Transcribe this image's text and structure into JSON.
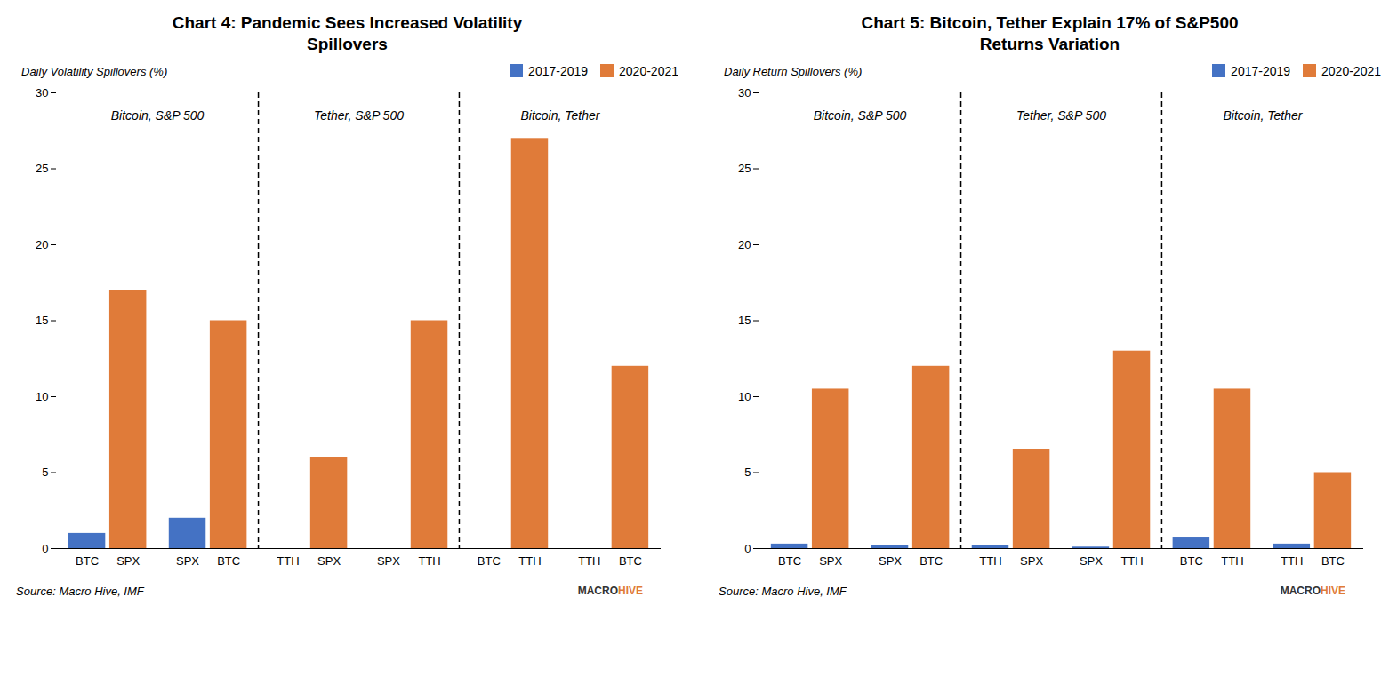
{
  "chart_data": [
    {
      "type": "bar",
      "title": "Chart 4: Pandemic Sees Increased Volatility\nSpillovers",
      "ylabel": "Daily Volatility Spillovers (%)",
      "categories": [
        "BTC",
        "SPX",
        "SPX",
        "BTC",
        "TTH",
        "SPX",
        "SPX",
        "TTH",
        "BTC",
        "TTH",
        "TTH",
        "BTC"
      ],
      "series": [
        {
          "name": "2017-2019",
          "color": "#4472C4",
          "values": [
            1.0,
            null,
            2.0,
            null,
            0.0,
            null,
            0.0,
            null,
            0.0,
            null,
            0.0,
            null
          ]
        },
        {
          "name": "2020-2021",
          "color": "#E07B39",
          "values": [
            null,
            17.0,
            null,
            15.0,
            null,
            6.0,
            null,
            15.0,
            null,
            27.0,
            null,
            12.0
          ]
        }
      ],
      "sections": [
        {
          "label": "Bitcoin, S&P 500",
          "count": 4
        },
        {
          "label": "Tether, S&P 500",
          "count": 4
        },
        {
          "label": "Bitcoin, Tether",
          "count": 4
        }
      ],
      "ylim": [
        0,
        30
      ],
      "yticks": [
        0,
        5,
        10,
        15,
        20,
        25,
        30
      ],
      "grid": false,
      "legend": "upper right",
      "source": "Source: Macro Hive, IMF",
      "logo": [
        {
          "text": "MACRO",
          "color": "#333333"
        },
        {
          "text": "HIVE",
          "color": "#E07B39"
        }
      ]
    },
    {
      "type": "bar",
      "title": "Chart 5: Bitcoin, Tether Explain 17% of S&P500\nReturns Variation",
      "ylabel": "Daily Return Spillovers (%)",
      "categories": [
        "BTC",
        "SPX",
        "SPX",
        "BTC",
        "TTH",
        "SPX",
        "SPX",
        "TTH",
        "BTC",
        "TTH",
        "TTH",
        "BTC"
      ],
      "series": [
        {
          "name": "2017-2019",
          "color": "#4472C4",
          "values": [
            0.3,
            null,
            0.2,
            null,
            0.2,
            null,
            0.1,
            null,
            0.7,
            null,
            0.3,
            null
          ]
        },
        {
          "name": "2020-2021",
          "color": "#E07B39",
          "values": [
            null,
            10.5,
            null,
            12.0,
            null,
            6.5,
            null,
            13.0,
            null,
            10.5,
            null,
            5.0
          ]
        }
      ],
      "sections": [
        {
          "label": "Bitcoin, S&P 500",
          "count": 4
        },
        {
          "label": "Tether, S&P 500",
          "count": 4
        },
        {
          "label": "Bitcoin, Tether",
          "count": 4
        }
      ],
      "ylim": [
        0,
        30
      ],
      "yticks": [
        0,
        5,
        10,
        15,
        20,
        25,
        30
      ],
      "grid": false,
      "legend": "upper right",
      "source": "Source: Macro Hive, IMF",
      "logo": [
        {
          "text": "MACRO",
          "color": "#333333"
        },
        {
          "text": "HIVE",
          "color": "#E07B39"
        }
      ]
    }
  ]
}
